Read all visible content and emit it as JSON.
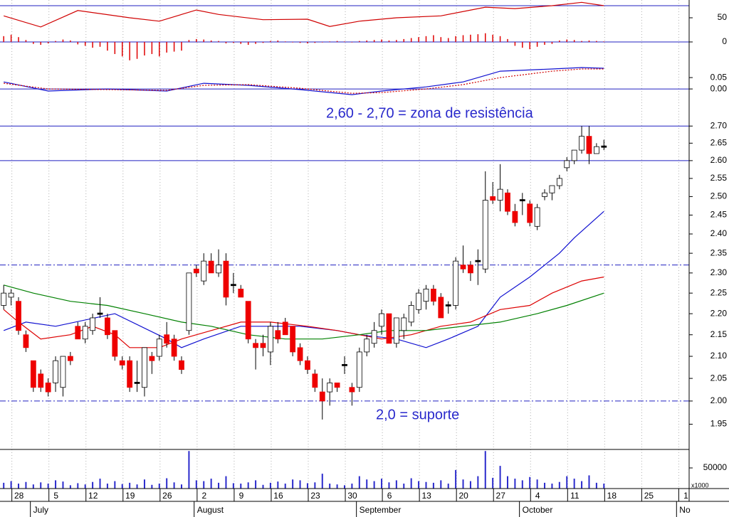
{
  "chart_data": [
    {
      "type": "oscillator",
      "ylim": [
        -42.7,
        86.8
      ],
      "yticks": [
        50,
        0
      ],
      "hlines": [
        75,
        0
      ],
      "hline_color": "#2020c0",
      "histogram": {
        "color": "#e00000",
        "values": [
          12,
          15,
          10,
          4,
          -4,
          -6,
          -3,
          2,
          5,
          3,
          -5,
          -8,
          -12,
          -10,
          -18,
          -25,
          -30,
          -38,
          -35,
          -28,
          -25,
          -30,
          -22,
          -20,
          -18,
          4,
          6,
          5,
          3,
          2,
          -3,
          -2,
          -4,
          -6,
          -4,
          -2,
          2,
          3,
          1,
          -1,
          -2,
          -3,
          -2,
          -1,
          1,
          2,
          1,
          -1,
          2,
          3,
          4,
          5,
          3,
          4,
          6,
          8,
          10,
          12,
          14,
          10,
          8,
          12,
          14,
          15,
          16,
          18,
          15,
          12,
          6,
          -8,
          -12,
          -15,
          -10,
          -6,
          -4,
          3,
          5,
          4,
          2,
          3,
          2,
          1
        ]
      },
      "series": [
        {
          "color": "#d00000",
          "x": [
            0,
            5,
            10,
            17,
            21,
            26,
            29,
            35,
            41,
            44,
            48,
            53,
            59,
            65,
            69,
            74,
            78,
            81
          ],
          "values": [
            54,
            31,
            65,
            50,
            43,
            66,
            57,
            46,
            47,
            32,
            43,
            50,
            54,
            72,
            69,
            75,
            82,
            75
          ]
        }
      ]
    },
    {
      "type": "line",
      "ylim": [
        -0.031,
        0.116
      ],
      "yticks": [
        0.05,
        {
          "value": 0,
          "label": "0.00"
        }
      ],
      "hlines": [
        0
      ],
      "hline_color": "#2020c0",
      "series": [
        {
          "color": "#1010d0",
          "x": [
            0,
            6,
            14,
            22,
            27,
            33,
            40,
            47,
            51,
            57,
            62,
            67,
            74,
            78,
            81
          ],
          "values": [
            0.031,
            -0.009,
            0,
            -0.009,
            0.025,
            0.016,
            -0.003,
            -0.025,
            -0.009,
            0.009,
            0.031,
            0.078,
            0.088,
            0.094,
            0.091
          ]
        },
        {
          "color": "#d00000",
          "dashed": true,
          "x": [
            0,
            6,
            14,
            22,
            27,
            33,
            40,
            47,
            51,
            57,
            62,
            67,
            74,
            78,
            81
          ],
          "values": [
            0.025,
            0,
            -0.003,
            -0.006,
            0.016,
            0.019,
            0.003,
            -0.019,
            -0.016,
            0,
            0.019,
            0.05,
            0.078,
            0.088,
            0.088
          ]
        }
      ]
    },
    {
      "type": "candlestick",
      "log_scale": true,
      "ylim": [
        1.9,
        2.79
      ],
      "yticks": [
        {
          "value": 2.7,
          "label": "2.70"
        },
        2.65,
        {
          "value": 2.6,
          "label": "2.60"
        },
        2.55,
        {
          "value": 2.5,
          "label": "2.50"
        },
        2.45,
        {
          "value": 2.4,
          "label": "2.40"
        },
        2.35,
        {
          "value": 2.3,
          "label": "2.30"
        },
        2.25,
        {
          "value": 2.2,
          "label": "2.20"
        },
        2.15,
        {
          "value": 2.1,
          "label": "2.10"
        },
        2.05,
        {
          "value": 2.0,
          "label": "2.00"
        },
        1.95
      ],
      "hlines": [
        {
          "value": 2.7,
          "style": "solid"
        },
        {
          "value": 2.6,
          "style": "solid"
        },
        {
          "value": 2.32,
          "style": "dashdot"
        },
        {
          "value": 2.0,
          "style": "dashdot"
        }
      ],
      "hline_color": "#2020c0",
      "annotations": [
        "2,60 - 2,70 = zona de resistência",
        "2,0 = suporte"
      ],
      "up_color": "#ffffff",
      "down_color": "#ee0000",
      "flat_color": "#000000",
      "ohlc": [
        [
          2.22,
          2.27,
          2.21,
          2.25
        ],
        [
          2.24,
          2.26,
          2.22,
          2.25
        ],
        [
          2.23,
          2.24,
          2.15,
          2.16
        ],
        [
          2.15,
          2.16,
          2.11,
          2.12
        ],
        [
          2.09,
          2.09,
          2.02,
          2.03
        ],
        [
          2.06,
          2.07,
          2.02,
          2.03
        ],
        [
          2.04,
          2.05,
          2.01,
          2.02
        ],
        [
          2.04,
          2.1,
          2.02,
          2.09
        ],
        [
          2.03,
          2.1,
          2.01,
          2.1
        ],
        [
          2.1,
          2.11,
          2.08,
          2.09
        ],
        [
          2.17,
          2.18,
          2.14,
          2.14
        ],
        [
          2.14,
          2.18,
          2.13,
          2.17
        ],
        [
          2.16,
          2.2,
          2.15,
          2.19
        ],
        [
          2.2,
          2.24,
          2.19,
          2.2
        ],
        [
          2.19,
          2.2,
          2.14,
          2.15
        ],
        [
          2.16,
          2.16,
          2.09,
          2.1
        ],
        [
          2.09,
          2.1,
          2.07,
          2.08
        ],
        [
          2.09,
          2.1,
          2.02,
          2.03
        ],
        [
          2.04,
          2.09,
          2.02,
          2.04
        ],
        [
          2.03,
          2.12,
          2.01,
          2.12
        ],
        [
          2.1,
          2.11,
          2.06,
          2.09
        ],
        [
          2.1,
          2.15,
          2.09,
          2.14
        ],
        [
          2.15,
          2.18,
          2.12,
          2.13
        ],
        [
          2.14,
          2.15,
          2.09,
          2.1
        ],
        [
          2.09,
          2.1,
          2.06,
          2.07
        ],
        [
          2.16,
          2.3,
          2.15,
          2.3
        ],
        [
          2.31,
          2.32,
          2.29,
          2.3
        ],
        [
          2.28,
          2.35,
          2.27,
          2.33
        ],
        [
          2.33,
          2.35,
          2.3,
          2.3
        ],
        [
          2.3,
          2.36,
          2.29,
          2.32
        ],
        [
          2.33,
          2.35,
          2.22,
          2.24
        ],
        [
          2.27,
          2.3,
          2.25,
          2.27
        ],
        [
          2.26,
          2.27,
          2.24,
          2.24
        ],
        [
          2.23,
          2.23,
          2.13,
          2.14
        ],
        [
          2.13,
          2.14,
          2.07,
          2.12
        ],
        [
          2.13,
          2.15,
          2.1,
          2.12
        ],
        [
          2.11,
          2.18,
          2.08,
          2.17
        ],
        [
          2.16,
          2.18,
          2.13,
          2.14
        ],
        [
          2.18,
          2.19,
          2.15,
          2.15
        ],
        [
          2.17,
          2.17,
          2.1,
          2.11
        ],
        [
          2.12,
          2.13,
          2.08,
          2.09
        ],
        [
          2.09,
          2.1,
          2.06,
          2.07
        ],
        [
          2.06,
          2.07,
          2.02,
          2.03
        ],
        [
          2.02,
          2.05,
          1.96,
          2.0
        ],
        [
          2.02,
          2.05,
          1.99,
          2.04
        ],
        [
          2.04,
          2.04,
          2.02,
          2.03
        ],
        [
          2.08,
          2.1,
          2.06,
          2.08
        ],
        [
          2.03,
          2.04,
          1.99,
          2.02
        ],
        [
          2.03,
          2.12,
          2.02,
          2.11
        ],
        [
          2.11,
          2.15,
          2.1,
          2.14
        ],
        [
          2.13,
          2.18,
          2.12,
          2.16
        ],
        [
          2.17,
          2.21,
          2.15,
          2.2
        ],
        [
          2.2,
          2.2,
          2.13,
          2.13
        ],
        [
          2.13,
          2.19,
          2.12,
          2.19
        ],
        [
          2.16,
          2.2,
          2.14,
          2.19
        ],
        [
          2.18,
          2.23,
          2.17,
          2.22
        ],
        [
          2.21,
          2.26,
          2.2,
          2.25
        ],
        [
          2.23,
          2.27,
          2.21,
          2.26
        ],
        [
          2.26,
          2.27,
          2.22,
          2.23
        ],
        [
          2.24,
          2.25,
          2.19,
          2.19
        ],
        [
          2.22,
          2.23,
          2.2,
          2.22
        ],
        [
          2.22,
          2.34,
          2.21,
          2.33
        ],
        [
          2.32,
          2.37,
          2.3,
          2.31
        ],
        [
          2.32,
          2.33,
          2.28,
          2.3
        ],
        [
          2.33,
          2.36,
          2.27,
          2.33
        ],
        [
          2.31,
          2.57,
          2.3,
          2.49
        ],
        [
          2.5,
          2.54,
          2.48,
          2.49
        ],
        [
          2.49,
          2.59,
          2.46,
          2.52
        ],
        [
          2.51,
          2.52,
          2.45,
          2.46
        ],
        [
          2.46,
          2.48,
          2.42,
          2.43
        ],
        [
          2.49,
          2.51,
          2.45,
          2.49
        ],
        [
          2.48,
          2.49,
          2.42,
          2.43
        ],
        [
          2.42,
          2.48,
          2.41,
          2.47
        ],
        [
          2.5,
          2.52,
          2.49,
          2.51
        ],
        [
          2.51,
          2.53,
          2.49,
          2.53
        ],
        [
          2.53,
          2.56,
          2.52,
          2.55
        ],
        [
          2.58,
          2.61,
          2.57,
          2.6
        ],
        [
          2.6,
          2.63,
          2.59,
          2.63
        ],
        [
          2.63,
          2.7,
          2.62,
          2.67
        ],
        [
          2.67,
          2.7,
          2.59,
          2.62
        ],
        [
          2.62,
          2.65,
          2.62,
          2.64
        ],
        [
          2.64,
          2.66,
          2.63,
          2.64
        ]
      ],
      "series": [
        {
          "color": "#1010d0",
          "x": [
            0,
            3,
            7,
            15,
            22,
            24,
            27,
            32,
            36,
            40,
            45,
            48,
            53,
            57,
            60,
            64,
            67,
            71,
            75,
            77,
            81
          ],
          "values": [
            2.16,
            2.18,
            2.17,
            2.2,
            2.14,
            2.12,
            2.14,
            2.17,
            2.17,
            2.17,
            2.16,
            2.15,
            2.14,
            2.12,
            2.14,
            2.17,
            2.24,
            2.29,
            2.35,
            2.39,
            2.46
          ]
        },
        {
          "color": "#dd0000",
          "x": [
            0,
            2,
            5,
            9,
            12,
            15,
            17,
            21,
            24,
            28,
            32,
            36,
            41,
            45,
            48,
            51,
            55,
            59,
            63,
            67,
            71,
            74,
            78,
            81
          ],
          "values": [
            2.21,
            2.18,
            2.14,
            2.15,
            2.17,
            2.15,
            2.12,
            2.12,
            2.14,
            2.16,
            2.18,
            2.18,
            2.17,
            2.16,
            2.15,
            2.14,
            2.15,
            2.17,
            2.18,
            2.21,
            2.22,
            2.25,
            2.28,
            2.29
          ]
        },
        {
          "color": "#008000",
          "x": [
            0,
            4,
            9,
            14,
            19,
            24,
            28,
            33,
            38,
            43,
            48,
            52,
            57,
            62,
            67,
            72,
            76,
            81
          ],
          "values": [
            2.27,
            2.25,
            2.23,
            2.22,
            2.2,
            2.18,
            2.17,
            2.15,
            2.14,
            2.14,
            2.15,
            2.16,
            2.16,
            2.17,
            2.18,
            2.2,
            2.22,
            2.25
          ]
        }
      ]
    },
    {
      "type": "bar",
      "color": "#2a2acc",
      "ylim": [
        0,
        94800
      ],
      "yticks": [
        50000
      ],
      "unit_label": "x1000",
      "values": [
        14000,
        18000,
        12000,
        16000,
        10000,
        15000,
        12000,
        20000,
        17000,
        8000,
        13000,
        10000,
        16000,
        24000,
        12000,
        18000,
        11000,
        14000,
        10000,
        22000,
        9000,
        12000,
        25000,
        15000,
        10000,
        91000,
        20000,
        18000,
        24000,
        14000,
        30000,
        13000,
        12000,
        15000,
        20000,
        9000,
        14000,
        17000,
        12000,
        22000,
        20000,
        13000,
        15000,
        36000,
        12000,
        10000,
        8000,
        12000,
        30000,
        22000,
        18000,
        24000,
        15000,
        20000,
        12000,
        25000,
        18000,
        16000,
        14000,
        20000,
        12000,
        45000,
        22000,
        18000,
        30000,
        91000,
        26000,
        55000,
        30000,
        24000,
        20000,
        28000,
        22000,
        14000,
        12000,
        16000,
        30000,
        24000,
        18000,
        32000,
        14000,
        12000
      ],
      "xlim": [
        -0.5,
        92.5
      ],
      "xticks": [
        {
          "value": 1.1,
          "label": "28"
        },
        {
          "value": 6.1,
          "label": "5"
        },
        {
          "value": 11.1,
          "label": "12"
        },
        {
          "value": 16.1,
          "label": "19"
        },
        {
          "value": 21.1,
          "label": "26"
        },
        {
          "value": 26.1,
          "label": "2"
        },
        {
          "value": 31.1,
          "label": "9"
        },
        {
          "value": 36.1,
          "label": "16"
        },
        {
          "value": 41.1,
          "label": "23"
        },
        {
          "value": 46.1,
          "label": "30"
        },
        {
          "value": 51.1,
          "label": "6"
        },
        {
          "value": 56.1,
          "label": "13"
        },
        {
          "value": 61.1,
          "label": "20"
        },
        {
          "value": 66.1,
          "label": "27"
        },
        {
          "value": 71.1,
          "label": "4"
        },
        {
          "value": 76.1,
          "label": "11"
        },
        {
          "value": 81.1,
          "label": "18"
        },
        {
          "value": 86.1,
          "label": "25"
        },
        {
          "value": 91.1,
          "label": "1"
        }
      ],
      "months": [
        {
          "value": 3.6,
          "label": "July"
        },
        {
          "value": 25.7,
          "label": "August"
        },
        {
          "value": 47.6,
          "label": "September"
        },
        {
          "value": 69.6,
          "label": "October"
        },
        {
          "value": 90.8,
          "label": "No"
        }
      ]
    }
  ]
}
